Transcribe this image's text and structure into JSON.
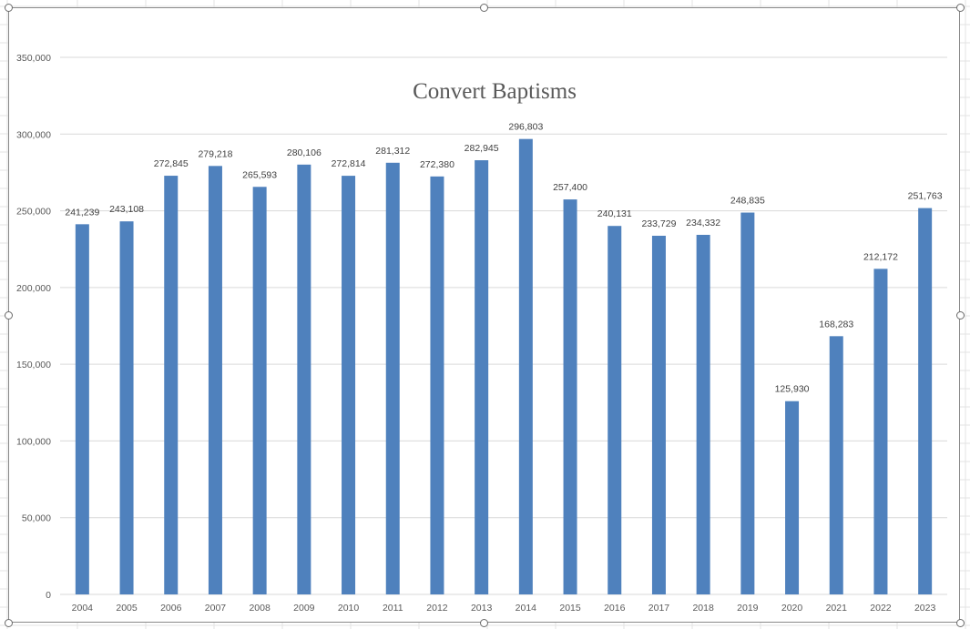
{
  "colors": {
    "bar": "#4f81bd",
    "gridline": "#d9d9d9",
    "axis_line": "#d9d9d9",
    "sheet_gridline": "#e3e3e3"
  },
  "chart_data": {
    "type": "bar",
    "title": "Convert Baptisms",
    "xlabel": "",
    "ylabel": "",
    "ylim": [
      0,
      350000
    ],
    "y_ticks": [
      0,
      50000,
      100000,
      150000,
      200000,
      250000,
      300000,
      350000
    ],
    "y_tick_labels": [
      "0",
      "50,000",
      "100,000",
      "150,000",
      "200,000",
      "250,000",
      "300,000",
      "350,000"
    ],
    "grid": true,
    "legend": "none",
    "categories": [
      "2004",
      "2005",
      "2006",
      "2007",
      "2008",
      "2009",
      "2010",
      "2011",
      "2012",
      "2013",
      "2014",
      "2015",
      "2016",
      "2017",
      "2018",
      "2019",
      "2020",
      "2021",
      "2022",
      "2023"
    ],
    "values": [
      241239,
      243108,
      272845,
      279218,
      265593,
      280106,
      272814,
      281312,
      272380,
      282945,
      296803,
      257400,
      240131,
      233729,
      234332,
      248835,
      125930,
      168283,
      212172,
      251763
    ],
    "data_labels": [
      "241,239",
      "243,108",
      "272,845",
      "279,218",
      "265,593",
      "280,106",
      "272,814",
      "281,312",
      "272,380",
      "282,945",
      "296,803",
      "257,400",
      "240,131",
      "233,729",
      "234,332",
      "248,835",
      "125,930",
      "168,283",
      "212,172",
      "251,763"
    ]
  }
}
